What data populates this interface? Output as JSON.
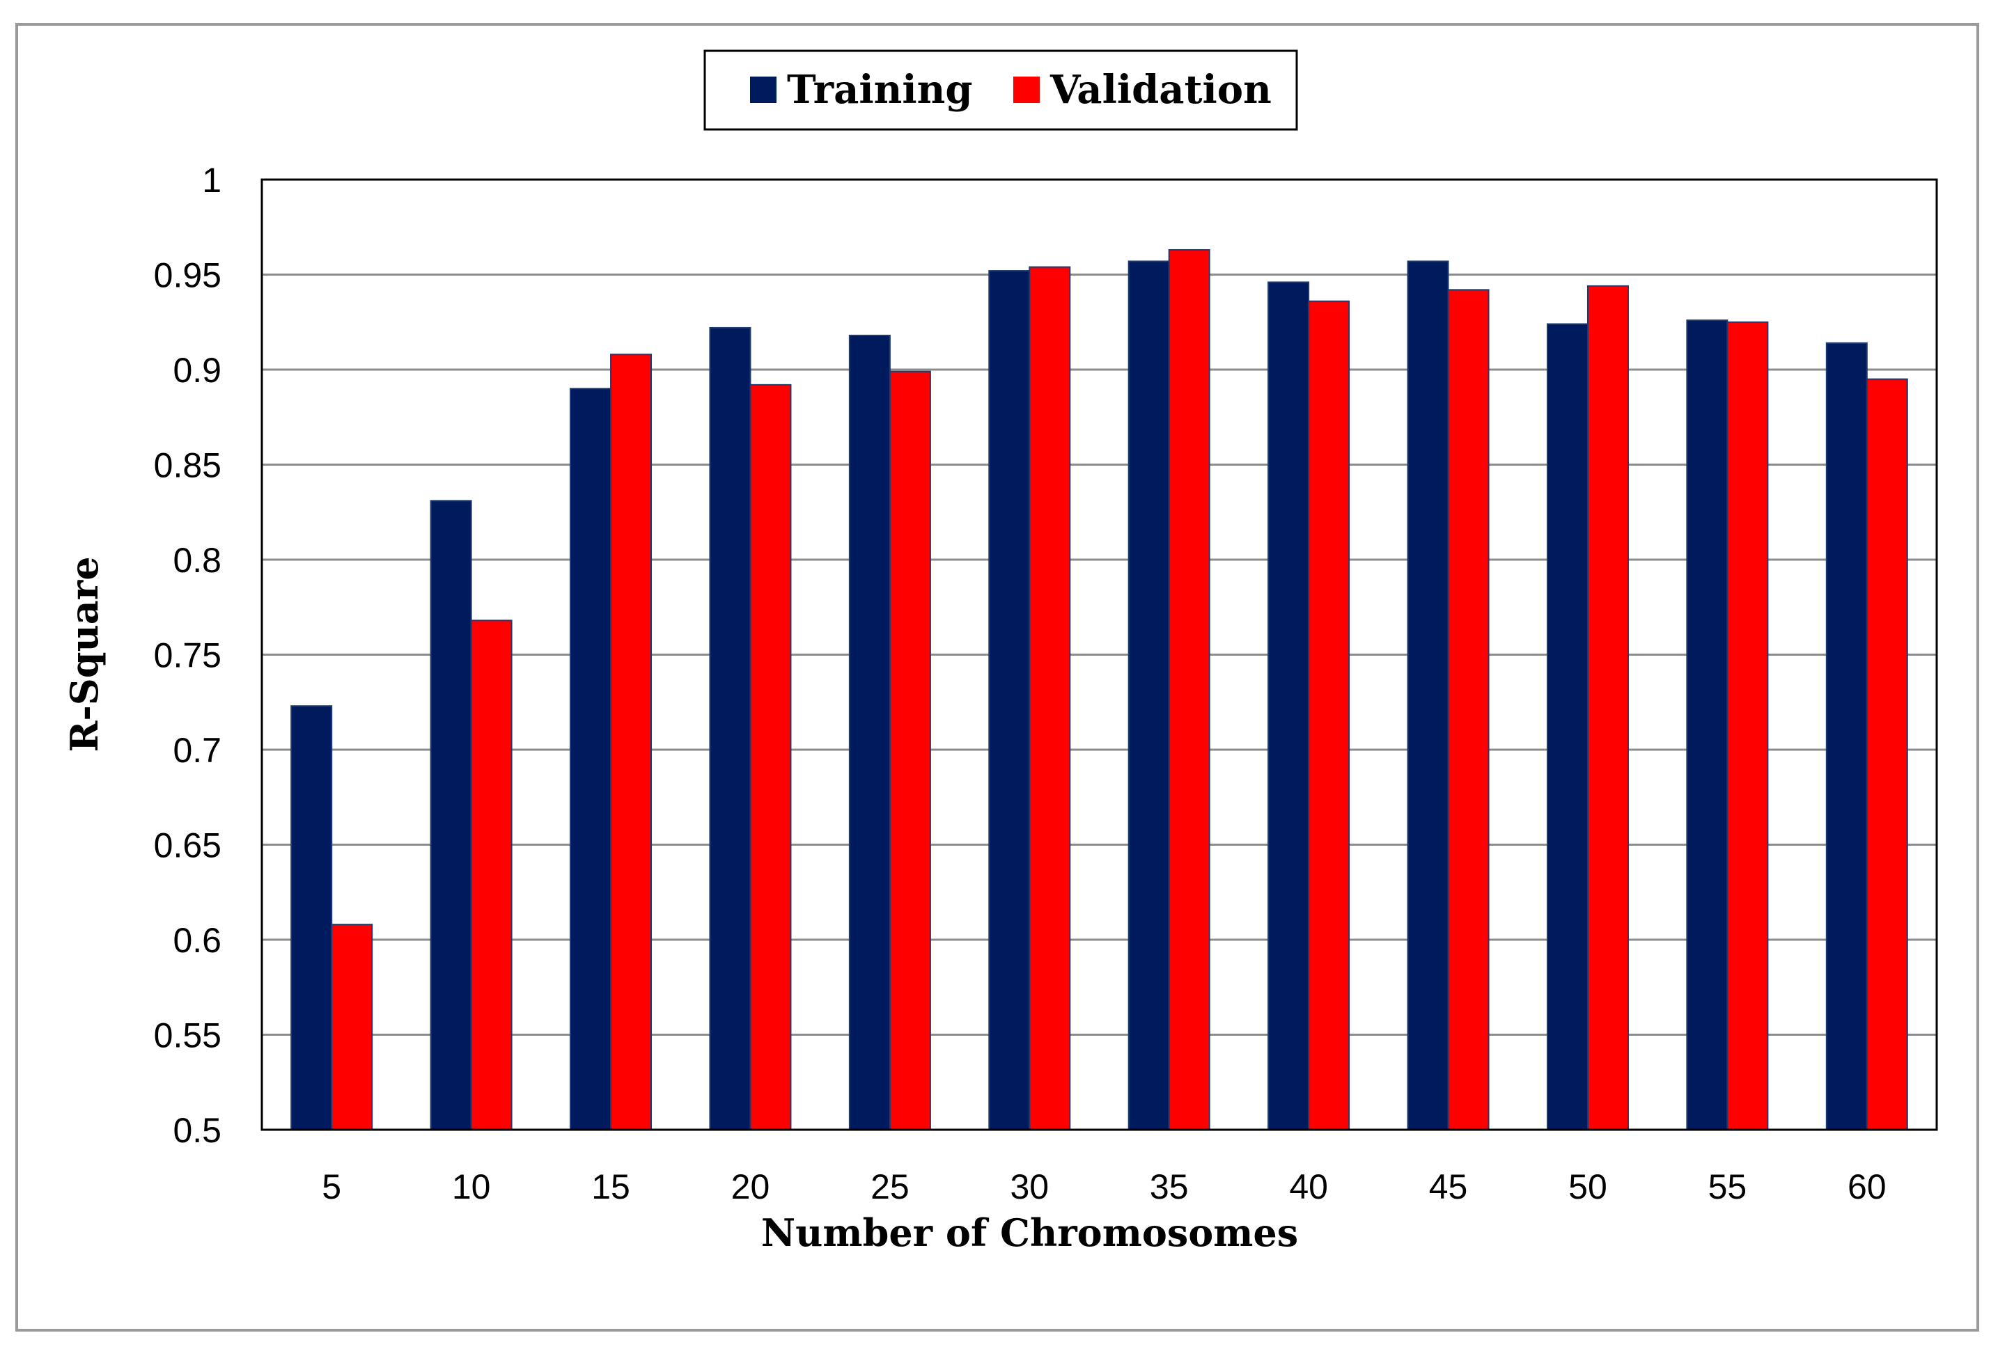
{
  "chart_data": {
    "type": "bar",
    "title": "",
    "xlabel": "Number of Chromosomes",
    "ylabel": "R-Square",
    "categories": [
      "5",
      "10",
      "15",
      "20",
      "25",
      "30",
      "35",
      "40",
      "45",
      "50",
      "55",
      "60"
    ],
    "series": [
      {
        "name": "Training",
        "color": "#001a5e",
        "values": [
          0.723,
          0.831,
          0.89,
          0.922,
          0.918,
          0.952,
          0.957,
          0.946,
          0.957,
          0.924,
          0.926,
          0.914
        ]
      },
      {
        "name": "Validation",
        "color": "#ff0000",
        "values": [
          0.608,
          0.768,
          0.908,
          0.892,
          0.899,
          0.954,
          0.963,
          0.936,
          0.942,
          0.944,
          0.925,
          0.895
        ]
      }
    ],
    "ylim": [
      0.5,
      1.0
    ],
    "yticks": [
      "0.5",
      "0.55",
      "0.6",
      "0.65",
      "0.7",
      "0.75",
      "0.8",
      "0.85",
      "0.9",
      "0.95",
      "1"
    ],
    "grid": true,
    "legend": "top-center"
  }
}
